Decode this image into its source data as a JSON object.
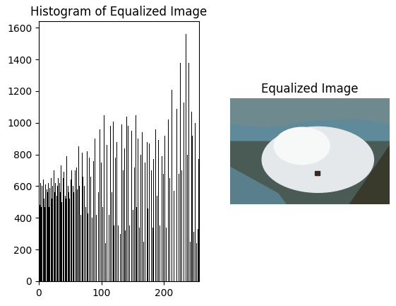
{
  "chart_data": {
    "type": "histogram",
    "title": "Histogram of Equalized Image",
    "color": "#000000",
    "bins": [
      0,
      1,
      2,
      3,
      4,
      5,
      6,
      7,
      8,
      9,
      10,
      11,
      12,
      13,
      14,
      15,
      16,
      17,
      18,
      19,
      20,
      21,
      22,
      23,
      24,
      25,
      26,
      27,
      28,
      29,
      30,
      31,
      32,
      33,
      34,
      35,
      36,
      37,
      38,
      39,
      40,
      41,
      42,
      43,
      44,
      45,
      46,
      47,
      48,
      49,
      50,
      51,
      52,
      53,
      54,
      55,
      56,
      57,
      58,
      59,
      60,
      61,
      62,
      63,
      64,
      65,
      66,
      67,
      68,
      69,
      70,
      71,
      72,
      73,
      74,
      75,
      76,
      77,
      78,
      79,
      80,
      81,
      82,
      83,
      84,
      85,
      86,
      87,
      88,
      89,
      90,
      91,
      92,
      93,
      94,
      95,
      96,
      97,
      98,
      99,
      100,
      101,
      102,
      103,
      104,
      105,
      106,
      107,
      108,
      109,
      110,
      111,
      112,
      113,
      114,
      115,
      116,
      117,
      118,
      119,
      120,
      121,
      122,
      123,
      124,
      125,
      126,
      127,
      128,
      129,
      130,
      131,
      132,
      133,
      134,
      135,
      136,
      137,
      138,
      139,
      140,
      141,
      142,
      143,
      144,
      145,
      146,
      147,
      148,
      149,
      150,
      151,
      152,
      153,
      154,
      155,
      156,
      157,
      158,
      159,
      160,
      161,
      162,
      163,
      164,
      165,
      166,
      167,
      168,
      169,
      170,
      171,
      172,
      173,
      174,
      175,
      176,
      177,
      178,
      179,
      180,
      181,
      182,
      183,
      184,
      185,
      186,
      187,
      188,
      189,
      190,
      191,
      192,
      193,
      194,
      195,
      196,
      197,
      198,
      199,
      200,
      201,
      202,
      203,
      204,
      205,
      206,
      207,
      208,
      209,
      210,
      211,
      212,
      213,
      214,
      215,
      216,
      217,
      218,
      219,
      220,
      221,
      222,
      223,
      224,
      225,
      226,
      227,
      228,
      229,
      230,
      231,
      232,
      233,
      234,
      235,
      236,
      237,
      238,
      239,
      240,
      241,
      242,
      243,
      244,
      245,
      246,
      247,
      248,
      249,
      250,
      251,
      252,
      253,
      254,
      255,
      256
    ],
    "values": [
      540,
      480,
      620,
      470,
      630,
      600,
      0,
      640,
      520,
      470,
      610,
      0,
      580,
      490,
      560,
      620,
      470,
      590,
      0,
      650,
      520,
      600,
      480,
      0,
      700,
      560,
      620,
      0,
      540,
      600,
      470,
      650,
      0,
      620,
      560,
      730,
      500,
      0,
      650,
      580,
      690,
      0,
      540,
      520,
      790,
      0,
      600,
      560,
      580,
      520,
      0,
      640,
      700,
      0,
      600,
      560,
      0,
      680,
      700,
      0,
      720,
      580,
      0,
      850,
      600,
      0,
      740,
      420,
      0,
      810,
      660,
      0,
      600,
      0,
      470,
      700,
      0,
      820,
      430,
      0,
      780,
      0,
      660,
      0,
      880,
      400,
      0,
      760,
      0,
      900,
      0,
      420,
      0,
      840,
      0,
      560,
      0,
      960,
      0,
      750,
      0,
      470,
      230,
      0,
      1050,
      0,
      240,
      0,
      860,
      0,
      930,
      0,
      420,
      0,
      980,
      0,
      560,
      0,
      1010,
      0,
      350,
      0,
      780,
      0,
      880,
      0,
      350,
      0,
      1000,
      0,
      300,
      0,
      990,
      0,
      700,
      0,
      840,
      0,
      320,
      0,
      1040,
      0,
      980,
      0,
      350,
      0,
      870,
      0,
      950,
      0,
      450,
      0,
      720,
      0,
      1050,
      0,
      470,
      0,
      900,
      0,
      340,
      0,
      800,
      0,
      0,
      940,
      0,
      250,
      0,
      750,
      0,
      0,
      880,
      0,
      460,
      0,
      870,
      0,
      0,
      700,
      0,
      340,
      0,
      770,
      0,
      0,
      960,
      0,
      540,
      0,
      0,
      890,
      0,
      350,
      0,
      0,
      790,
      0,
      680,
      0,
      0,
      920,
      0,
      340,
      0,
      0,
      1020,
      0,
      0,
      650,
      0,
      0,
      1210,
      0,
      0,
      570,
      0,
      800,
      0,
      0,
      1090,
      0,
      0,
      680,
      0,
      1380,
      0,
      0,
      700,
      0,
      0,
      1130,
      0,
      0,
      1560,
      0,
      0,
      800,
      0,
      1380,
      0,
      250,
      0,
      1070,
      0,
      920,
      0,
      310,
      0,
      1000,
      0,
      240,
      0,
      900,
      330,
      770
    ],
    "xlim": [
      0,
      256
    ],
    "xticks": [
      0,
      100,
      200
    ],
    "ylim": [
      0,
      1640
    ],
    "yticks": [
      0,
      200,
      400,
      600,
      800,
      1000,
      1200,
      1400,
      1600
    ]
  },
  "image": {
    "title": "Equalized Image"
  }
}
